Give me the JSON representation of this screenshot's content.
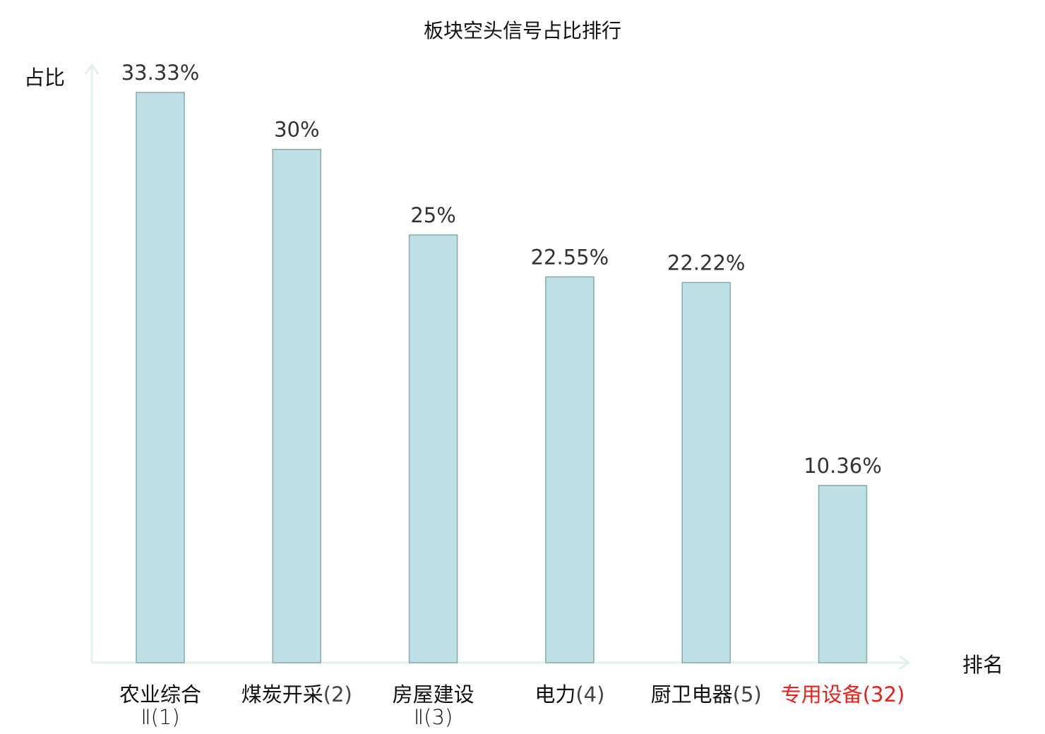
{
  "chart_data": {
    "type": "bar",
    "title": "板块空头信号占比排行",
    "ylabel": "占比",
    "xlabel": "排名",
    "ylim": [
      0,
      33.33
    ],
    "grid": false,
    "categories": [
      {
        "name": "农业综合",
        "name2": "Ⅱ",
        "rank": "(1)",
        "highlight": false
      },
      {
        "name": "煤炭开采",
        "name2": "",
        "rank": "(2)",
        "highlight": false
      },
      {
        "name": "房屋建设",
        "name2": "Ⅱ",
        "rank": "(3)",
        "highlight": false
      },
      {
        "name": "电力",
        "name2": "",
        "rank": "(4)",
        "highlight": false
      },
      {
        "name": "厨卫电器",
        "name2": "",
        "rank": "(5)",
        "highlight": false
      },
      {
        "name": "专用设备",
        "name2": "",
        "rank": "(32)",
        "highlight": true
      }
    ],
    "values": [
      33.33,
      30,
      25,
      22.55,
      22.22,
      10.36
    ],
    "labels": [
      "33.33%",
      "30%",
      "25%",
      "22.55%",
      "22.22%",
      "10.36%"
    ],
    "colors": {
      "bar": "#bce0e3",
      "bar_edge": "#8aa8a8",
      "axis": "#dff2f0",
      "highlight": "#e8211e",
      "text": "#111111"
    }
  }
}
